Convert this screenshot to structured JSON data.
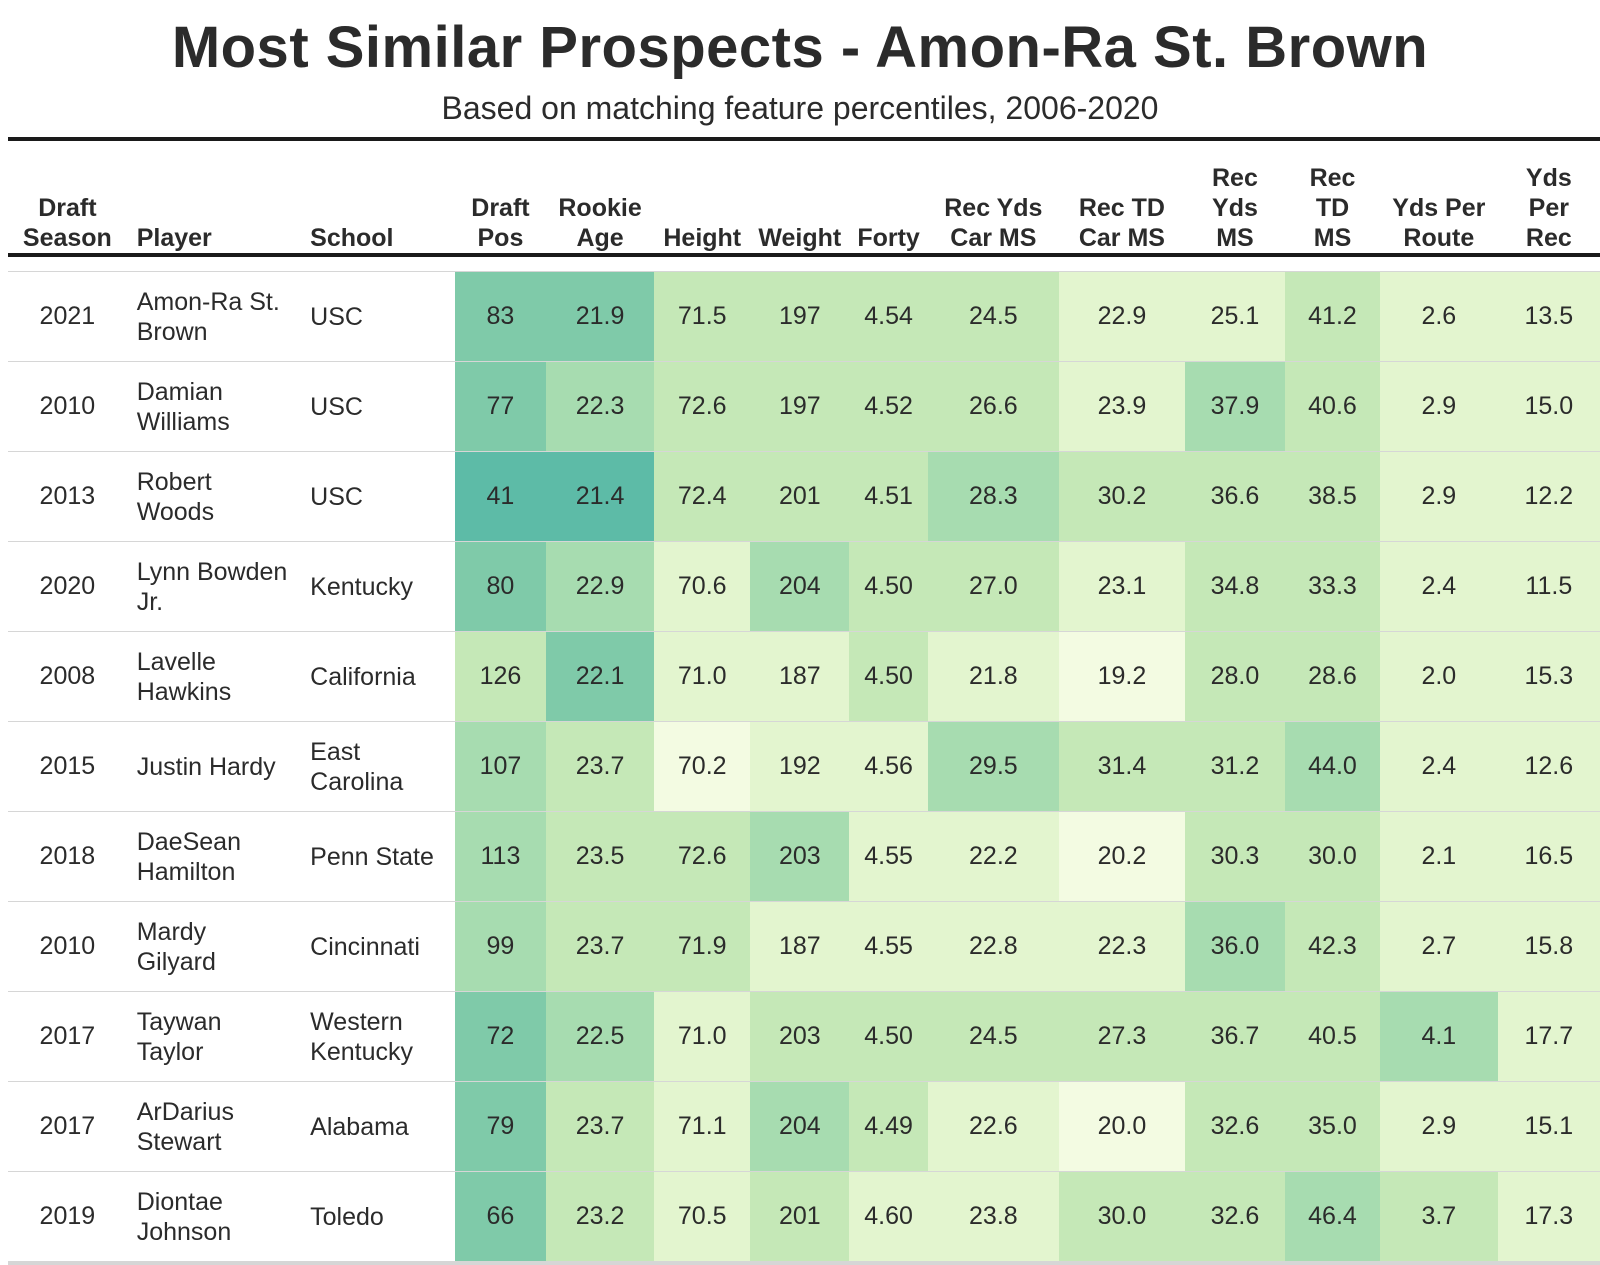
{
  "title": "Most Similar Prospects - Amon-Ra St. Brown",
  "subtitle": "Based on matching feature percentiles, 2006-2020",
  "colors": {
    "palette": [
      "#f3fbe2",
      "#e3f5cf",
      "#c5e8b7",
      "#a7dcb0",
      "#7fcaa9",
      "#5dbba7"
    ]
  },
  "chart_data": {
    "type": "table",
    "columns": [
      {
        "key": "season",
        "label": [
          "Draft",
          "Season"
        ]
      },
      {
        "key": "player",
        "label": [
          "Player"
        ]
      },
      {
        "key": "school",
        "label": [
          "School"
        ]
      },
      {
        "key": "draft_pos",
        "label": [
          "Draft",
          "Pos"
        ]
      },
      {
        "key": "rookie_age",
        "label": [
          "Rookie",
          "Age"
        ]
      },
      {
        "key": "height",
        "label": [
          "Height"
        ]
      },
      {
        "key": "weight",
        "label": [
          "Weight"
        ]
      },
      {
        "key": "forty",
        "label": [
          "Forty"
        ]
      },
      {
        "key": "rec_yds_car_ms",
        "label": [
          "Rec Yds",
          "Car MS"
        ]
      },
      {
        "key": "rec_td_car_ms",
        "label": [
          "Rec TD",
          "Car MS"
        ]
      },
      {
        "key": "rec_yds_ms",
        "label": [
          "Rec",
          "Yds",
          "MS"
        ]
      },
      {
        "key": "rec_td_ms",
        "label": [
          "Rec",
          "TD",
          "MS"
        ]
      },
      {
        "key": "yds_per_route",
        "label": [
          "Yds Per",
          "Route"
        ]
      },
      {
        "key": "yds_per_rec",
        "label": [
          "Yds",
          "Per",
          "Rec"
        ]
      }
    ],
    "rows": [
      {
        "season": "2021",
        "player": [
          "Amon-Ra St.",
          "Brown"
        ],
        "school": [
          "USC"
        ],
        "values": [
          "83",
          "21.9",
          "71.5",
          "197",
          "4.54",
          "24.5",
          "22.9",
          "25.1",
          "41.2",
          "2.6",
          "13.5"
        ],
        "shades": [
          4,
          4,
          2,
          2,
          2,
          2,
          1,
          1,
          2,
          1,
          1
        ]
      },
      {
        "season": "2010",
        "player": [
          "Damian",
          "Williams"
        ],
        "school": [
          "USC"
        ],
        "values": [
          "77",
          "22.3",
          "72.6",
          "197",
          "4.52",
          "26.6",
          "23.9",
          "37.9",
          "40.6",
          "2.9",
          "15.0"
        ],
        "shades": [
          4,
          3,
          2,
          2,
          2,
          2,
          1,
          3,
          2,
          1,
          1
        ]
      },
      {
        "season": "2013",
        "player": [
          "Robert",
          "Woods"
        ],
        "school": [
          "USC"
        ],
        "values": [
          "41",
          "21.4",
          "72.4",
          "201",
          "4.51",
          "28.3",
          "30.2",
          "36.6",
          "38.5",
          "2.9",
          "12.2"
        ],
        "shades": [
          5,
          5,
          2,
          2,
          2,
          3,
          2,
          2,
          2,
          1,
          1
        ]
      },
      {
        "season": "2020",
        "player": [
          "Lynn Bowden",
          "Jr."
        ],
        "school": [
          "Kentucky"
        ],
        "values": [
          "80",
          "22.9",
          "70.6",
          "204",
          "4.50",
          "27.0",
          "23.1",
          "34.8",
          "33.3",
          "2.4",
          "11.5"
        ],
        "shades": [
          4,
          3,
          1,
          3,
          2,
          2,
          1,
          2,
          2,
          1,
          1
        ]
      },
      {
        "season": "2008",
        "player": [
          "Lavelle",
          "Hawkins"
        ],
        "school": [
          "California"
        ],
        "values": [
          "126",
          "22.1",
          "71.0",
          "187",
          "4.50",
          "21.8",
          "19.2",
          "28.0",
          "28.6",
          "2.0",
          "15.3"
        ],
        "shades": [
          2,
          4,
          1,
          1,
          2,
          1,
          0,
          2,
          2,
          1,
          1
        ]
      },
      {
        "season": "2015",
        "player": [
          "Justin Hardy"
        ],
        "school": [
          "East",
          "Carolina"
        ],
        "values": [
          "107",
          "23.7",
          "70.2",
          "192",
          "4.56",
          "29.5",
          "31.4",
          "31.2",
          "44.0",
          "2.4",
          "12.6"
        ],
        "shades": [
          3,
          2,
          0,
          1,
          1,
          3,
          2,
          2,
          3,
          1,
          1
        ]
      },
      {
        "season": "2018",
        "player": [
          "DaeSean",
          "Hamilton"
        ],
        "school": [
          "Penn State"
        ],
        "values": [
          "113",
          "23.5",
          "72.6",
          "203",
          "4.55",
          "22.2",
          "20.2",
          "30.3",
          "30.0",
          "2.1",
          "16.5"
        ],
        "shades": [
          3,
          2,
          2,
          3,
          1,
          1,
          0,
          2,
          2,
          1,
          1
        ]
      },
      {
        "season": "2010",
        "player": [
          "Mardy",
          "Gilyard"
        ],
        "school": [
          "Cincinnati"
        ],
        "values": [
          "99",
          "23.7",
          "71.9",
          "187",
          "4.55",
          "22.8",
          "22.3",
          "36.0",
          "42.3",
          "2.7",
          "15.8"
        ],
        "shades": [
          3,
          2,
          2,
          1,
          1,
          1,
          1,
          3,
          2,
          1,
          1
        ]
      },
      {
        "season": "2017",
        "player": [
          "Taywan",
          "Taylor"
        ],
        "school": [
          "Western",
          "Kentucky"
        ],
        "values": [
          "72",
          "22.5",
          "71.0",
          "203",
          "4.50",
          "24.5",
          "27.3",
          "36.7",
          "40.5",
          "4.1",
          "17.7"
        ],
        "shades": [
          4,
          3,
          1,
          2,
          2,
          2,
          2,
          2,
          2,
          3,
          1
        ]
      },
      {
        "season": "2017",
        "player": [
          "ArDarius",
          "Stewart"
        ],
        "school": [
          "Alabama"
        ],
        "values": [
          "79",
          "23.7",
          "71.1",
          "204",
          "4.49",
          "22.6",
          "20.0",
          "32.6",
          "35.0",
          "2.9",
          "15.1"
        ],
        "shades": [
          4,
          2,
          1,
          3,
          2,
          1,
          0,
          2,
          2,
          1,
          1
        ]
      },
      {
        "season": "2019",
        "player": [
          "Diontae",
          "Johnson"
        ],
        "school": [
          "Toledo"
        ],
        "values": [
          "66",
          "23.2",
          "70.5",
          "201",
          "4.60",
          "23.8",
          "30.0",
          "32.6",
          "46.4",
          "3.7",
          "17.3"
        ],
        "shades": [
          4,
          2,
          1,
          2,
          1,
          1,
          2,
          2,
          3,
          2,
          1
        ]
      }
    ]
  }
}
